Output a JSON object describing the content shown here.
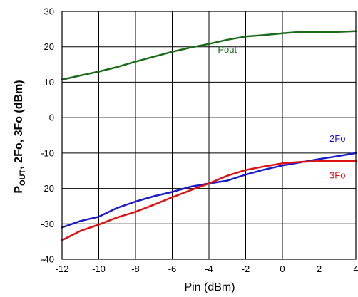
{
  "chart_data": {
    "type": "line",
    "xlabel": "Pin (dBm)",
    "ylabel": {
      "p": "P",
      "sub": "OUT",
      "rest": ", 2Fo, 3Fo (dBm)"
    },
    "xlim": [
      -12,
      4
    ],
    "ylim": [
      -40,
      30
    ],
    "x_ticks": [
      -12,
      -10,
      -8,
      -6,
      -4,
      -2,
      0,
      2,
      4
    ],
    "y_ticks": [
      30,
      20,
      10,
      0,
      -10,
      -20,
      -30,
      -40
    ],
    "x_tick_labels": [
      "-12",
      "-10",
      "-8",
      "-6",
      "-4",
      "-2",
      "0",
      "2",
      "4"
    ],
    "y_tick_labels": [
      "30",
      "20",
      "10",
      "0",
      "-10",
      "-20",
      "-30",
      "-40"
    ],
    "grid": true,
    "series": [
      {
        "name": "Pout",
        "color": "#1a6b1a",
        "x": [
          -12,
          -11,
          -10,
          -9,
          -8,
          -7,
          -6,
          -5,
          -4,
          -3,
          -2,
          -1,
          0,
          1,
          2,
          3,
          4
        ],
        "y": [
          10.7,
          11.9,
          13.0,
          14.3,
          15.8,
          17.2,
          18.6,
          19.8,
          20.8,
          22.0,
          22.9,
          23.3,
          23.8,
          24.2,
          24.2,
          24.2,
          24.4
        ]
      },
      {
        "name": "2Fo",
        "color": "#1a1acc",
        "x": [
          -12,
          -11,
          -10,
          -9,
          -8,
          -7,
          -6,
          -5,
          -4,
          -3,
          -2,
          -1,
          0,
          1,
          2,
          3,
          4
        ],
        "y": [
          -31.0,
          -29.2,
          -28.0,
          -25.5,
          -23.7,
          -22.2,
          -21.0,
          -19.5,
          -18.6,
          -17.8,
          -16.1,
          -14.7,
          -13.5,
          -12.6,
          -11.7,
          -10.9,
          -10.0
        ]
      },
      {
        "name": "3Fo",
        "color": "#dd1111",
        "x": [
          -12,
          -11,
          -10,
          -9,
          -8,
          -7,
          -6,
          -5,
          -4,
          -3,
          -2,
          -1,
          0,
          1,
          2,
          3,
          4
        ],
        "y": [
          -34.6,
          -32.0,
          -30.2,
          -28.2,
          -26.6,
          -24.6,
          -22.5,
          -20.5,
          -18.6,
          -16.4,
          -14.8,
          -13.8,
          -12.9,
          -12.5,
          -12.3,
          -12.3,
          -12.3
        ]
      }
    ]
  }
}
